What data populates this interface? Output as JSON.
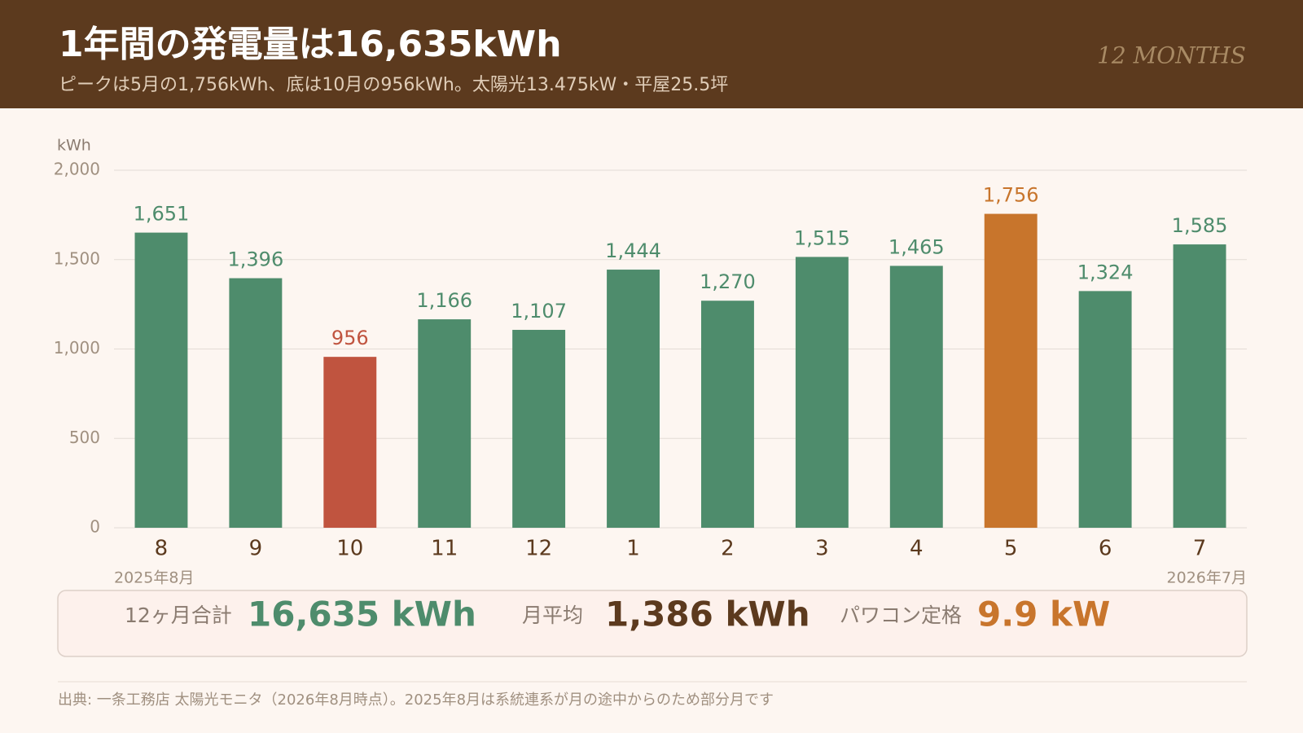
{
  "header": {
    "title": "1年間の発電量は16,635kWh",
    "subtitle": "ピークは5月の1,756kWh、底は10月の956kWh。太陽光13.475kW・平屋25.5坪",
    "badge": "12 MONTHS"
  },
  "chart_data": {
    "type": "bar",
    "y_unit": "kWh",
    "categories": [
      "8",
      "9",
      "10",
      "11",
      "12",
      "1",
      "2",
      "3",
      "4",
      "5",
      "6",
      "7"
    ],
    "values": [
      1651,
      1396,
      956,
      1166,
      1107,
      1444,
      1270,
      1515,
      1465,
      1756,
      1324,
      1585
    ],
    "value_labels": [
      "1,651",
      "1,396",
      "956",
      "1,166",
      "1,107",
      "1,444",
      "1,270",
      "1,515",
      "1,465",
      "1,756",
      "1,324",
      "1,585"
    ],
    "colors": [
      "#4e8c6c",
      "#4e8c6c",
      "#c0543f",
      "#4e8c6c",
      "#4e8c6c",
      "#4e8c6c",
      "#4e8c6c",
      "#4e8c6c",
      "#4e8c6c",
      "#c8752c",
      "#4e8c6c",
      "#4e8c6c"
    ],
    "ylim": [
      0,
      2000
    ],
    "yticks": [
      0,
      500,
      {
        "value": 1000,
        "label": "1,000"
      },
      {
        "value": 1500,
        "label": "1,500"
      },
      {
        "value": 2000,
        "label": "2,000"
      }
    ],
    "grid": true,
    "x_start_label": "2025年8月",
    "x_end_label": "2026年7月"
  },
  "summary": [
    {
      "label": "12ヶ月合計",
      "value": "16,635 kWh"
    },
    {
      "label": "月平均",
      "value": "1,386 kWh"
    },
    {
      "label": "パワコン定格",
      "value": "9.9 kW"
    }
  ],
  "footer": "出典: 一条工務店 太陽光モニタ（2026年8月時点）。2025年8月は系統連系が月の途中からのため部分月です"
}
